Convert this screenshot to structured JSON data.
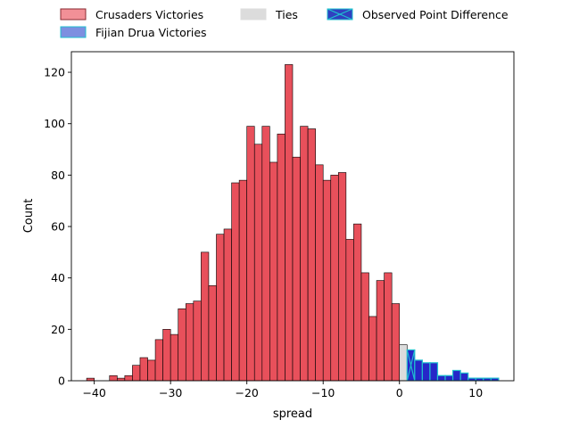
{
  "chart_data": {
    "type": "bar",
    "title": "",
    "xlabel": "spread",
    "ylabel": "Count",
    "xlim": [
      -43,
      15
    ],
    "ylim": [
      0,
      128
    ],
    "x_ticks": [
      -40,
      -30,
      -20,
      -10,
      0,
      10
    ],
    "y_ticks": [
      0,
      20,
      40,
      60,
      80,
      100,
      120
    ],
    "legend_position": "top, outside plot, 3 columns",
    "colors": {
      "crusaders": "#e8505b",
      "fijian": "#2626c8",
      "fijian_edge": "#1fbfcf",
      "ties": "#dcdcdc",
      "observed_fill": "#3040c0",
      "observed_line": "#1fbfcf"
    },
    "legend": [
      {
        "label": "Crusaders Victories",
        "key": "crusaders",
        "style": "patch-red"
      },
      {
        "label": "Fijian Drua Victories",
        "key": "fijian",
        "style": "patch-blue"
      },
      {
        "label": "Ties",
        "key": "ties",
        "style": "patch-grey"
      },
      {
        "label": "Observed Point Difference",
        "key": "observed",
        "style": "patch-x"
      }
    ],
    "series": [
      {
        "name": "Crusaders Victories",
        "bins": [
          {
            "x": -40.5,
            "count": 1
          },
          {
            "x": -39.5,
            "count": 0
          },
          {
            "x": -38.5,
            "count": 0
          },
          {
            "x": -37.5,
            "count": 2
          },
          {
            "x": -36.5,
            "count": 1
          },
          {
            "x": -35.5,
            "count": 2
          },
          {
            "x": -34.5,
            "count": 6
          },
          {
            "x": -33.5,
            "count": 9
          },
          {
            "x": -32.5,
            "count": 8
          },
          {
            "x": -31.5,
            "count": 16
          },
          {
            "x": -30.5,
            "count": 20
          },
          {
            "x": -29.5,
            "count": 18
          },
          {
            "x": -28.5,
            "count": 28
          },
          {
            "x": -27.5,
            "count": 30
          },
          {
            "x": -26.5,
            "count": 31
          },
          {
            "x": -25.5,
            "count": 50
          },
          {
            "x": -24.5,
            "count": 37
          },
          {
            "x": -23.5,
            "count": 57
          },
          {
            "x": -22.5,
            "count": 59
          },
          {
            "x": -21.5,
            "count": 77
          },
          {
            "x": -20.5,
            "count": 78
          },
          {
            "x": -19.5,
            "count": 99
          },
          {
            "x": -18.5,
            "count": 92
          },
          {
            "x": -17.5,
            "count": 99
          },
          {
            "x": -16.5,
            "count": 85
          },
          {
            "x": -15.5,
            "count": 96
          },
          {
            "x": -14.5,
            "count": 123
          },
          {
            "x": -13.5,
            "count": 87
          },
          {
            "x": -12.5,
            "count": 99
          },
          {
            "x": -11.5,
            "count": 98
          },
          {
            "x": -10.5,
            "count": 84
          },
          {
            "x": -9.5,
            "count": 78
          },
          {
            "x": -8.5,
            "count": 80
          },
          {
            "x": -7.5,
            "count": 81
          },
          {
            "x": -6.5,
            "count": 55
          },
          {
            "x": -5.5,
            "count": 61
          },
          {
            "x": -4.5,
            "count": 42
          },
          {
            "x": -3.5,
            "count": 25
          },
          {
            "x": -2.5,
            "count": 39
          },
          {
            "x": -1.5,
            "count": 42
          },
          {
            "x": -0.5,
            "count": 30
          }
        ]
      },
      {
        "name": "Ties",
        "bins": [
          {
            "x": 0.5,
            "count": 14
          }
        ]
      },
      {
        "name": "Fijian Drua Victories",
        "bins": [
          {
            "x": 1.5,
            "count": 12
          },
          {
            "x": 2.5,
            "count": 8
          },
          {
            "x": 3.5,
            "count": 7
          },
          {
            "x": 4.5,
            "count": 7
          },
          {
            "x": 5.5,
            "count": 2
          },
          {
            "x": 6.5,
            "count": 2
          },
          {
            "x": 7.5,
            "count": 4
          },
          {
            "x": 8.5,
            "count": 3
          },
          {
            "x": 9.5,
            "count": 1
          },
          {
            "x": 10.5,
            "count": 1
          },
          {
            "x": 11.5,
            "count": 1
          },
          {
            "x": 12.5,
            "count": 1
          }
        ]
      }
    ],
    "bin_width": 1,
    "observed_point_difference": 1
  }
}
